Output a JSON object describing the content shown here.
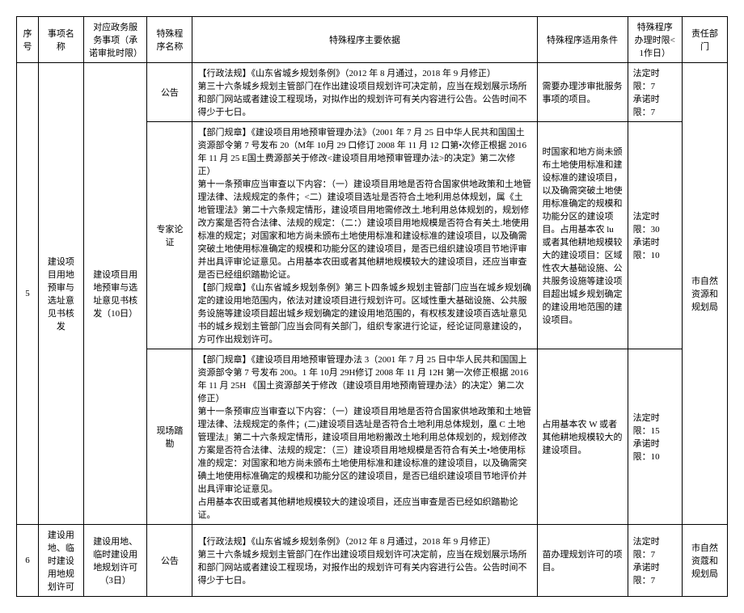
{
  "headers": {
    "seq": "序号",
    "itemName": "事项名称",
    "service": "对应政务服务事项（承诺审批时限）",
    "procName": "特殊程序名称",
    "basis": "特殊程序主要依据",
    "cond": "特殊程序适用条件",
    "time": "特殊程序办理时限<1作日）",
    "dept": "责任部门"
  },
  "row5": {
    "seq": "5",
    "itemName": "建设项目用地预审与选址意见书核发",
    "service": "建设项目用地预审与选址意见书核发（10日）",
    "dept": "市自然资源和规划局",
    "sub1": {
      "procName": "公告",
      "basis": "【行政法规】《山东省城乡规划条例》（2012 年 8 月通过，2018 年 9 月修正）\n第三十六条城乡规划主管部门在作出建设项目规划许可决定前，应当在规划展示场所和部门网站或者建设工程现场，对拟作出的规划许可有关内容进行公告。公告时间不得少于七日。",
      "cond": "需要办理涉审批服务事项的项目。",
      "time": "法定时限：7\n承诺时限：7"
    },
    "sub2": {
      "procName": "专家论证",
      "basis": "【部门规章】《建设项目用地预审管理办法》（2001 年 7 月 25 日中华人民共和国国土资源部令第 7 号发布 20（M年 10月 29 口修订 2008 年 11 月 12 口第•次修正根据 2016 年 11 月 25 E国土费源部关于修改<建设项目用地预审管理办法>的决定》第二次修正）\n第十一条预审应当审查以下内容：（一）建设项目用地是否符合国家供地政策和土地管理法律、法规规定的条件；<二）建设项目选址是否符合土地利用总体规划，属《土地管理法》第二十六条规定情形，建设项目用地需修改土.地利用总体规划的，规划修改方案是否符合法律、法规的规定：（二：）建设项目用地规模是否符合有关土.地使用标准的规定；对国家和地方尚未颁布土地使用标准和建设标准的建设项目，以及确需突破土地使用标准确定的规模和功能分区的建设项目，是否已组织建设项目节地评审并出具评审论证意见。占用基本农田或者其他耕地规模较大的建设项目，还应当审查是否已经组织踏勘论证。\n【部门规章】《山东省城乡规划条例》第三卜四条城乡规划主管部门应当在城乡规划确定的建设用地范围内，依法对建设项目进行规划许可。区域性重大基础设施、公共服务设施等建设项目超出城乡规划确定的建设用地范围的，有权核发建设项百选址意见书的城乡规划主管部门应当会同有关部门，组织专家进行论证，经论证同意建设的，方可作出规划许可。",
      "cond": "时国家和地方尚未颁布土地使用标准和建设标准的建设项目，以及确需突破土地使用标准确定的规模和功能分区的建设项目。占用基本农 lu 或者其他耕地规模较大的建设项目：区域性农大基础设施、公共服务设施等建设项目超出城乡规划确定的建设用地范围的建设项目。",
      "time": "法定时限：30\n承诺时限：10"
    },
    "sub3": {
      "procName": "现场踏勘",
      "basis": "【部门规章】《建设项目用地预审管理办法 3（2001 年 7 月 25 日中华人民共和国国上资源部令第 7 号发布 200。1 年 10月 29H修订 2008 年 11 月 12H 第一次修正根据 2016 年 11 月 25H 《国土资源部关于修改（建设项目用地预南管理办法〉的决定〉第二次修正）\n第十一条预审应当审查以下内容：（一）建设项目用地是否符合国家供地政策和土地管理法律、法规规定的条件；(二)建设项目选址是否符合土地利用总体规划，凰 C 土地管理法』第二十六条规定情形，建设项目用地粉搬改土地利用总体规划的，规划修改方案是否符合法律、法规的规定：（三）建设项目用地规模是否符合有关土•地使用标准的规定：对国家和地方尚未颁布土地使用标准和建设标准的建设项目，以及确需突碘土地使用标准确定的规模和功能分区的建设项目，是否已组织建设项目节地评价并出具评审论证意见。\n占用基本农田或者其他耕地规模较大的建设项目，还应当审查是否已经如织踏勘论证。",
      "cond": "占用基本农 W 或者其他耕地规模较大的建设项目。",
      "time": "法定时限：15\n承诺时限：10"
    }
  },
  "row6": {
    "seq": "6",
    "itemName": "建设用地、临时建设用地规划许可",
    "service": "建设用地、临时建设用地规划许可（3日）",
    "procName": "公告",
    "basis": "【行政法规】《山东省城乡规划条例》（2012 年 8 月通过，2018 年 9 月修正）\n第三十六条城乡规划主管部门在作出建设项目规划许可决定前，应当在规划展示场所和部门网站或者建设工程现场，对报作出的规划许可有关内容进行公告。公告时间不得少于七日。",
    "cond": "苗办理规划许可的项目。",
    "time": "法定时限：7\n承诺时限：7",
    "dept": "市自然资蔻和规划局"
  }
}
